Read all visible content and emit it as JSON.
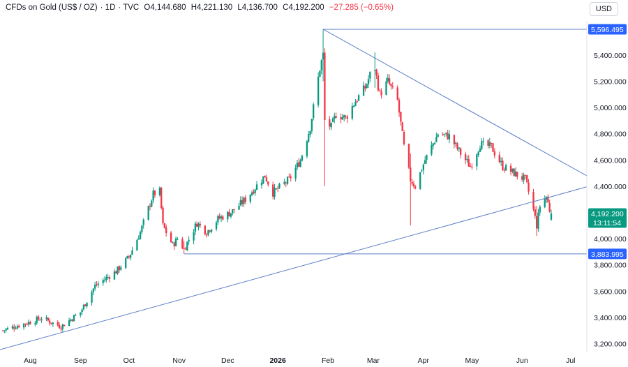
{
  "header": {
    "symbol": "CFDs on Gold (US$ / OZ)",
    "interval": "1D",
    "source": "TVC",
    "open": "O4,144.680",
    "high": "H4,221.130",
    "low": "L4,136.700",
    "close": "C4,192.200",
    "change": "−27.285 (−0.65%)"
  },
  "currency_button": "USD",
  "colors": {
    "up": "#089981",
    "down": "#f23645",
    "line": "#5b7fc7",
    "tag": "#2962ff",
    "last_tag": "#089981"
  },
  "chart_data": {
    "type": "candlestick",
    "title": "CFDs on Gold (US$ / OZ) · 1D · TVC",
    "ylim": [
      3160,
      5660
    ],
    "y_ticks": [
      "5,400.000",
      "5,200.000",
      "5,000.000",
      "4,800.000",
      "4,600.000",
      "4,400.000",
      "4,000.000",
      "3,800.000",
      "3,600.000",
      "3,400.000",
      "3,200.000"
    ],
    "y_tick_values": [
      5400,
      5200,
      5000,
      4800,
      4600,
      4400,
      4000,
      3800,
      3600,
      3400,
      3200
    ],
    "x_ticks": [
      "Aug",
      "Sep",
      "Oct",
      "Nov",
      "Dec",
      "2026",
      "Feb",
      "Mar",
      "Apr",
      "May",
      "Jun",
      "Jul"
    ],
    "x_tick_bold": [
      false,
      false,
      false,
      false,
      false,
      true,
      false,
      false,
      false,
      false,
      false,
      false
    ],
    "x_tick_dates": [
      "2025-08-01",
      "2025-09-01",
      "2025-10-01",
      "2025-11-01",
      "2025-12-01",
      "2026-01-01",
      "2026-02-01",
      "2026-03-01",
      "2026-04-01",
      "2026-05-01",
      "2026-06-01",
      "2026-07-01"
    ],
    "date_range": [
      "2025-07-15",
      "2026-06-19"
    ],
    "close_anchors": [
      [
        "2025-07-15",
        3300
      ],
      [
        "2025-07-25",
        3340
      ],
      [
        "2025-08-01",
        3365
      ],
      [
        "2025-08-08",
        3395
      ],
      [
        "2025-08-20",
        3330
      ],
      [
        "2025-09-01",
        3440
      ],
      [
        "2025-09-10",
        3640
      ],
      [
        "2025-09-23",
        3750
      ],
      [
        "2025-10-01",
        3860
      ],
      [
        "2025-10-08",
        4050
      ],
      [
        "2025-10-16",
        4340
      ],
      [
        "2025-10-20",
        4360
      ],
      [
        "2025-10-22",
        4100
      ],
      [
        "2025-10-28",
        3950
      ],
      [
        "2025-10-31",
        4000
      ],
      [
        "2025-11-04",
        3920
      ],
      [
        "2025-11-12",
        4120
      ],
      [
        "2025-11-18",
        4050
      ],
      [
        "2025-11-25",
        4150
      ],
      [
        "2025-12-03",
        4200
      ],
      [
        "2025-12-12",
        4300
      ],
      [
        "2025-12-24",
        4480
      ],
      [
        "2025-12-29",
        4350
      ],
      [
        "2026-01-08",
        4450
      ],
      [
        "2026-01-15",
        4600
      ],
      [
        "2026-01-21",
        4850
      ],
      [
        "2026-01-27",
        5300
      ],
      [
        "2026-01-29",
        5400
      ],
      [
        "2026-01-30",
        4900
      ],
      [
        "2026-02-03",
        4850
      ],
      [
        "2026-02-06",
        4950
      ],
      [
        "2026-02-12",
        4920
      ],
      [
        "2026-02-18",
        5050
      ],
      [
        "2026-02-24",
        5150
      ],
      [
        "2026-02-27",
        5250
      ],
      [
        "2026-03-02",
        5300
      ],
      [
        "2026-03-05",
        5100
      ],
      [
        "2026-03-10",
        5200
      ],
      [
        "2026-03-16",
        5050
      ],
      [
        "2026-03-20",
        4700
      ],
      [
        "2026-03-24",
        4450
      ],
      [
        "2026-03-27",
        4400
      ],
      [
        "2026-04-02",
        4600
      ],
      [
        "2026-04-10",
        4800
      ],
      [
        "2026-04-17",
        4780
      ],
      [
        "2026-04-24",
        4650
      ],
      [
        "2026-04-30",
        4550
      ],
      [
        "2026-05-06",
        4720
      ],
      [
        "2026-05-13",
        4700
      ],
      [
        "2026-05-20",
        4550
      ],
      [
        "2026-05-27",
        4500
      ],
      [
        "2026-06-03",
        4450
      ],
      [
        "2026-06-08",
        4220
      ],
      [
        "2026-06-10",
        4100
      ],
      [
        "2026-06-12",
        4250
      ],
      [
        "2026-06-16",
        4320
      ],
      [
        "2026-06-18",
        4220
      ],
      [
        "2026-06-19",
        4192.2
      ]
    ],
    "highlight_wicks": [
      {
        "date": "2026-01-29",
        "high": 5596.495,
        "low": 5200
      },
      {
        "date": "2026-01-30",
        "high": 5200,
        "low": 4400
      },
      {
        "date": "2026-03-02",
        "high": 5420,
        "low": 5150
      },
      {
        "date": "2026-03-24",
        "high": 4650,
        "low": 4100
      },
      {
        "date": "2026-06-10",
        "high": 4250,
        "low": 4020
      },
      {
        "date": "2025-11-04",
        "high": 3980,
        "low": 3883.995
      }
    ],
    "last_bar": {
      "date": "2026-06-19",
      "open": 4144.68,
      "high": 4221.13,
      "low": 4136.7,
      "close": 4192.2
    },
    "drawings": {
      "descending_trendline": {
        "from": [
          "2026-01-29",
          5596.495
        ],
        "to": [
          "2026-06-19",
          4630
        ]
      },
      "ascending_trendline": {
        "from": [
          "2025-07-15",
          3160
        ],
        "to": [
          "2026-06-19",
          4320
        ]
      },
      "resistance_line": {
        "from": "2026-01-29",
        "price": 5596.495
      },
      "support_line": {
        "from": "2025-11-04",
        "price": 3883.995
      }
    },
    "price_tags": [
      {
        "label": "5,596.495",
        "price": 5596.495,
        "kind": "level"
      },
      {
        "label": "4,192.200",
        "price": 4192.2,
        "kind": "last",
        "sub": "13:11:54"
      },
      {
        "label": "3,883.995",
        "price": 3883.995,
        "kind": "level"
      }
    ]
  }
}
